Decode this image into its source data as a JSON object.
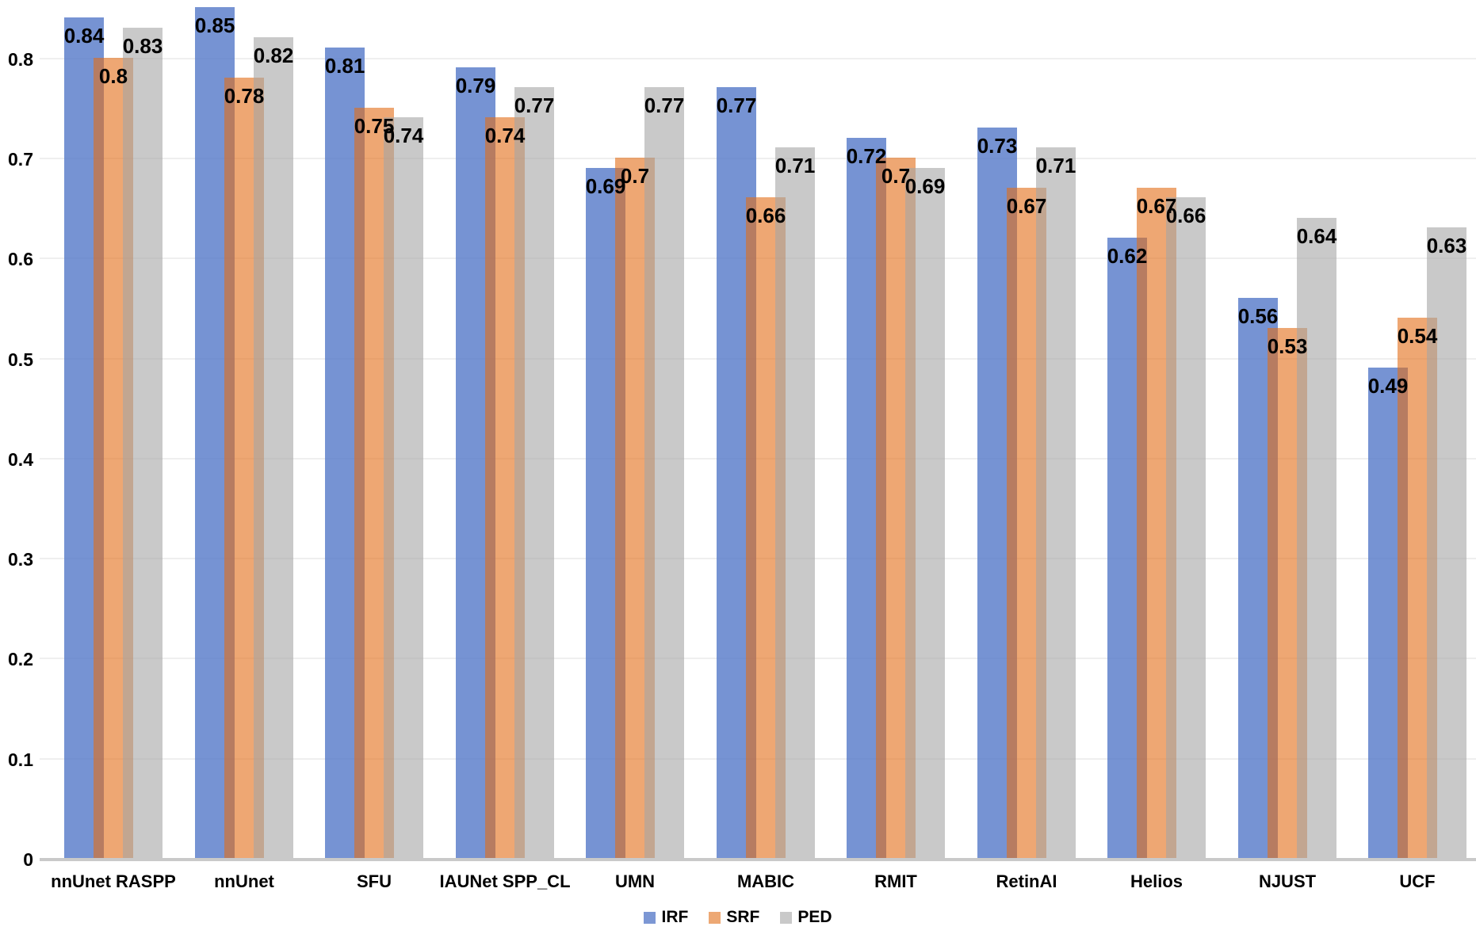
{
  "chart_data": {
    "type": "bar",
    "title": "",
    "xlabel": "",
    "ylabel": "",
    "categories": [
      "nnUnet RASPP",
      "nnUnet",
      "SFU",
      "IAUNet SPP_CL",
      "UMN",
      "MABIC",
      "RMIT",
      "RetinAI",
      "Helios",
      "NJUST",
      "UCF"
    ],
    "series": [
      {
        "name": "IRF",
        "display_color": "#7C97D4",
        "fill": "rgba(77,114,198,0.77)",
        "values": [
          0.84,
          0.85,
          0.81,
          0.79,
          0.69,
          0.77,
          0.72,
          0.73,
          0.62,
          0.56,
          0.49
        ]
      },
      {
        "name": "SRF",
        "display_color": "#EDA874",
        "fill": "rgba(226,108,22,0.6)",
        "values": [
          0.8,
          0.78,
          0.75,
          0.74,
          0.7,
          0.66,
          0.7,
          0.67,
          0.67,
          0.53,
          0.54
        ]
      },
      {
        "name": "PED",
        "display_color": "#C9C9C9",
        "fill": "rgba(165,165,165,0.6)",
        "values": [
          0.83,
          0.82,
          0.74,
          0.77,
          0.77,
          0.71,
          0.69,
          0.71,
          0.66,
          0.64,
          0.63
        ]
      }
    ],
    "y_ticks": [
      "0",
      "0.1",
      "0.2",
      "0.3",
      "0.4",
      "0.5",
      "0.6",
      "0.7",
      "0.8"
    ],
    "ylim": [
      0,
      0.88
    ],
    "grid": true,
    "gridline_color": "#EFEFEF",
    "axis_line_color": "#C9C9C9",
    "data_labels": "inside-end",
    "label_color": "#000000",
    "legend_position": "bottom-center"
  }
}
